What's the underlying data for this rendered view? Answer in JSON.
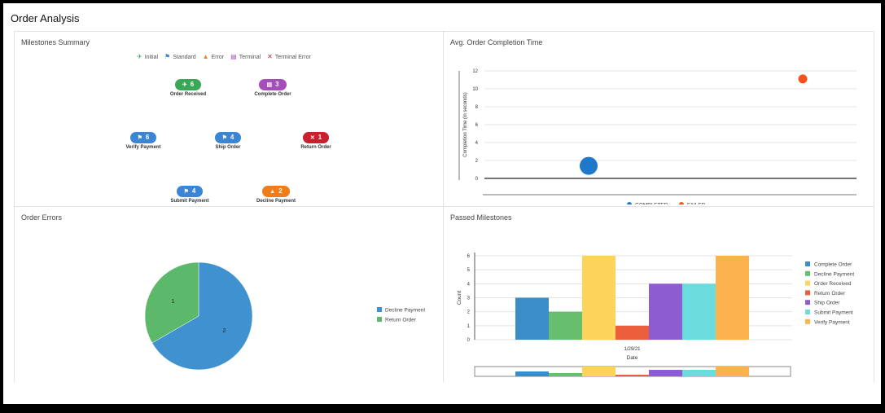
{
  "page": {
    "title": "Order Analysis"
  },
  "milestones": {
    "title": "Milestones Summary",
    "legend": [
      {
        "icon": "pin-icon",
        "glyph": "✈",
        "label": "Initial",
        "color": "#3aa757"
      },
      {
        "icon": "flag-icon",
        "glyph": "⚑",
        "label": "Standard",
        "color": "#3a86d4"
      },
      {
        "icon": "warning-icon",
        "glyph": "▲",
        "label": "Error",
        "color": "#f07d1a"
      },
      {
        "icon": "terminal-icon",
        "glyph": "▤",
        "label": "Terminal",
        "color": "#a54db8"
      },
      {
        "icon": "close-icon",
        "glyph": "✕",
        "label": "Terminal Error",
        "color": "#c8202f"
      }
    ],
    "items": [
      {
        "name": "Order Received",
        "count": "6",
        "glyph": "✈",
        "color": "#3aa757"
      },
      {
        "name": "Complete Order",
        "count": "3",
        "glyph": "▤",
        "color": "#a54db8"
      },
      {
        "name": "Verify Payment",
        "count": "6",
        "glyph": "⚑",
        "color": "#3a86d4"
      },
      {
        "name": "Ship Order",
        "count": "4",
        "glyph": "⚑",
        "color": "#3a86d4"
      },
      {
        "name": "Return Order",
        "count": "1",
        "glyph": "✕",
        "color": "#c8202f"
      },
      {
        "name": "Submit Payment",
        "count": "4",
        "glyph": "⚑",
        "color": "#3a86d4"
      },
      {
        "name": "Decline Payment",
        "count": "2",
        "glyph": "▲",
        "color": "#f07d1a"
      }
    ]
  },
  "chart_data": [
    {
      "type": "scatter",
      "title": "Avg. Order Completion Time",
      "ylabel": "Completion Time (in seconds)",
      "xlabel": "",
      "ylim": [
        0,
        12
      ],
      "yticks": [
        "0",
        "2",
        "4",
        "6",
        "8",
        "10",
        "12"
      ],
      "series": [
        {
          "name": "COMPLETED",
          "color": "#1f78c8",
          "points": [
            {
              "x": 1,
              "y": 1.4,
              "size": "large"
            }
          ]
        },
        {
          "name": "FAILED",
          "color": "#f4511e",
          "points": [
            {
              "x": 3,
              "y": 11.1,
              "size": "small"
            }
          ]
        }
      ],
      "legend_position": "bottom"
    },
    {
      "type": "pie",
      "title": "Order Errors",
      "slices": [
        {
          "label": "Decline Payment",
          "value": 2,
          "color": "#3f92cf"
        },
        {
          "label": "Return Order",
          "value": 1,
          "color": "#5cb86b"
        }
      ],
      "legend_position": "right"
    },
    {
      "type": "bar",
      "title": "Passed Milestones",
      "xlabel": "Date",
      "ylabel": "Count",
      "categories": [
        "1/29/21"
      ],
      "ylim": [
        0,
        6
      ],
      "yticks": [
        "0",
        "1",
        "2",
        "3",
        "4",
        "5",
        "6"
      ],
      "series": [
        {
          "name": "Complete Order",
          "values": [
            3
          ],
          "color": "#3a8dc9"
        },
        {
          "name": "Decline Payment",
          "values": [
            2
          ],
          "color": "#66bf6e"
        },
        {
          "name": "Order Received",
          "values": [
            6
          ],
          "color": "#fdd35c"
        },
        {
          "name": "Return Order",
          "values": [
            1
          ],
          "color": "#ec5f3c"
        },
        {
          "name": "Ship Order",
          "values": [
            4
          ],
          "color": "#8d5cd1"
        },
        {
          "name": "Submit Payment",
          "values": [
            4
          ],
          "color": "#6cdbde"
        },
        {
          "name": "Verify Payment",
          "values": [
            6
          ],
          "color": "#fcb24d"
        }
      ],
      "legend_position": "right"
    }
  ]
}
